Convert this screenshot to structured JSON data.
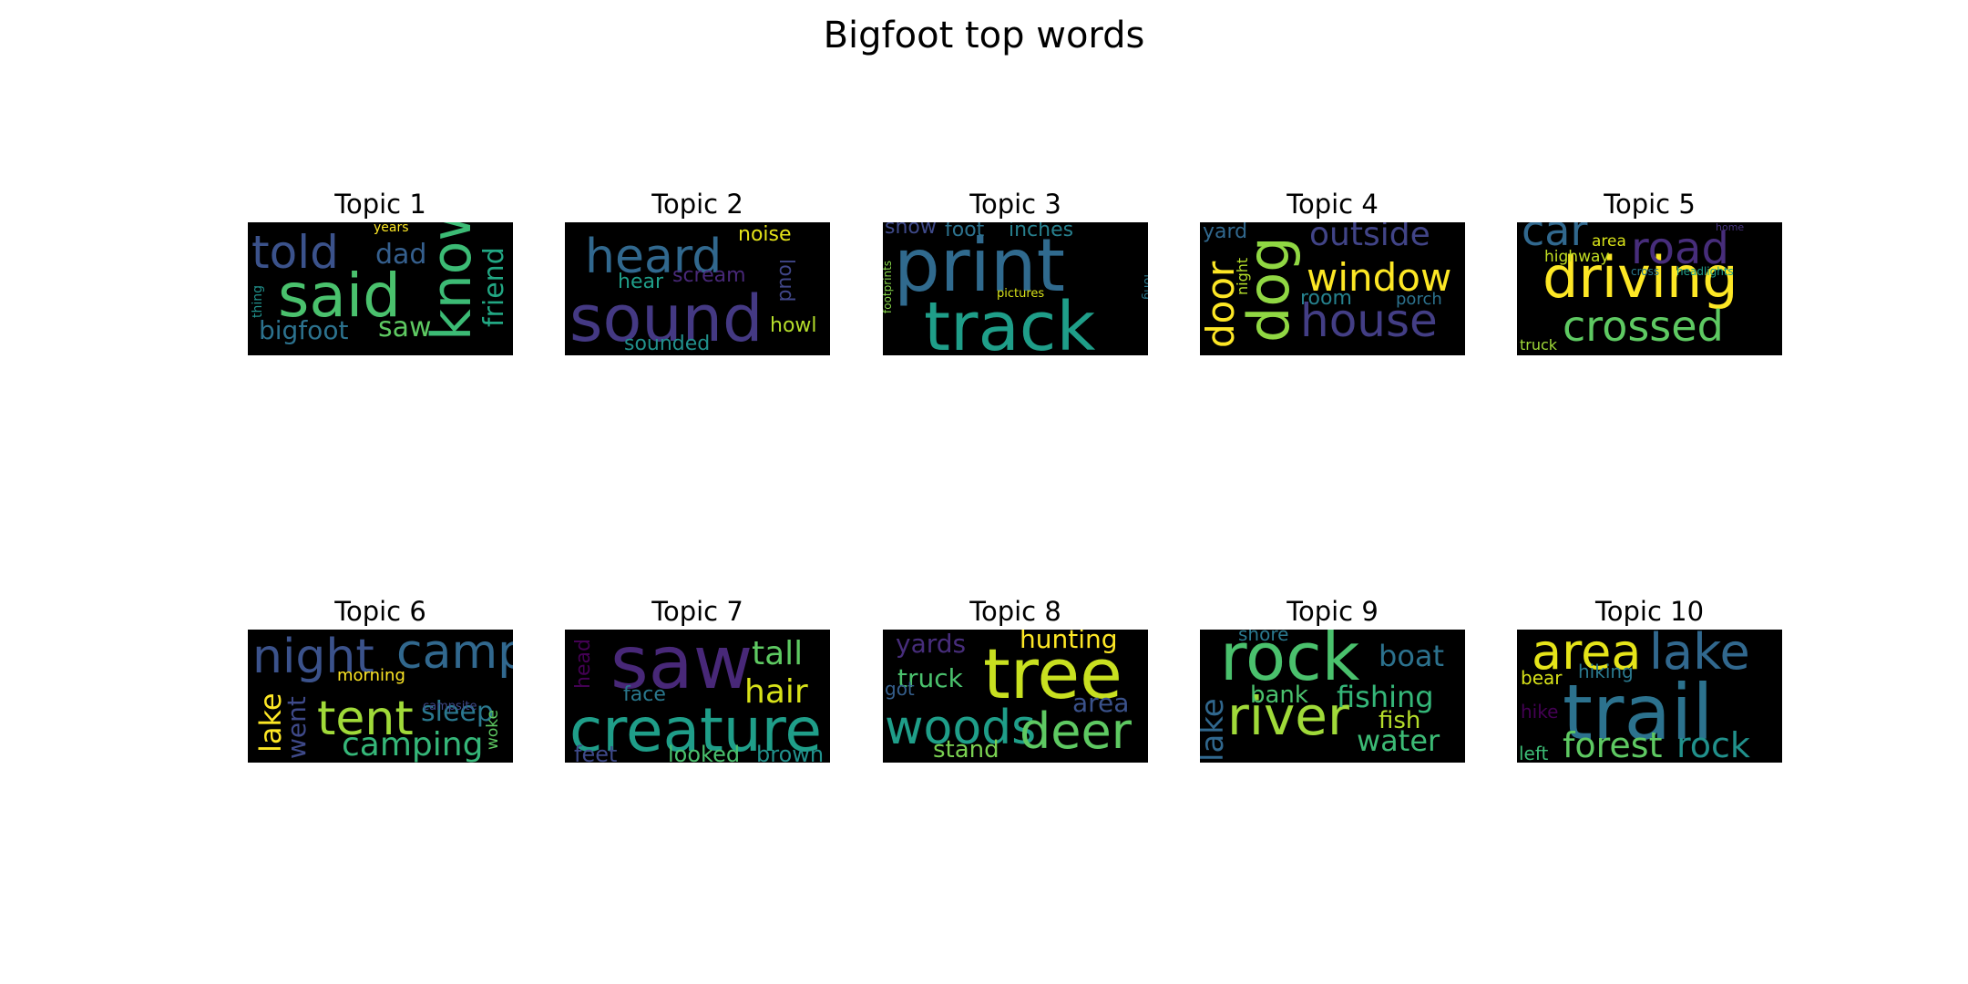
{
  "figure": {
    "title": "Bigfoot top words"
  },
  "chart_data": {
    "type": "wordcloud",
    "title": "Bigfoot top words",
    "colormap": "viridis",
    "background": "#000000",
    "topics": [
      {
        "title": "Topic 1",
        "words": [
          {
            "text": "said",
            "weight": 0.95,
            "color": "#4ac16d"
          },
          {
            "text": "told",
            "weight": 0.6,
            "color": "#3b528b"
          },
          {
            "text": "know",
            "weight": 0.7,
            "color": "#3cbb75"
          },
          {
            "text": "dad",
            "weight": 0.4,
            "color": "#355f8d"
          },
          {
            "text": "bigfoot",
            "weight": 0.35,
            "color": "#2c728e"
          },
          {
            "text": "saw",
            "weight": 0.36,
            "color": "#5ec962"
          },
          {
            "text": "friend",
            "weight": 0.38,
            "color": "#22a884"
          },
          {
            "text": "thing",
            "weight": 0.15,
            "color": "#21918c"
          },
          {
            "text": "years",
            "weight": 0.12,
            "color": "#fde725"
          }
        ]
      },
      {
        "title": "Topic 2",
        "words": [
          {
            "text": "sound",
            "weight": 1.0,
            "color": "#443983"
          },
          {
            "text": "heard",
            "weight": 0.7,
            "color": "#31688e"
          },
          {
            "text": "noise",
            "weight": 0.3,
            "color": "#e5e419"
          },
          {
            "text": "scream",
            "weight": 0.3,
            "color": "#482878"
          },
          {
            "text": "hear",
            "weight": 0.28,
            "color": "#1f9e89"
          },
          {
            "text": "loud",
            "weight": 0.3,
            "color": "#404688"
          },
          {
            "text": "howl",
            "weight": 0.3,
            "color": "#b5de2b"
          },
          {
            "text": "sounded",
            "weight": 0.28,
            "color": "#21918c"
          }
        ]
      },
      {
        "title": "Topic 3",
        "words": [
          {
            "text": "print",
            "weight": 1.0,
            "color": "#306a8e"
          },
          {
            "text": "track",
            "weight": 1.0,
            "color": "#1f9e89"
          },
          {
            "text": "snow",
            "weight": 0.26,
            "color": "#3e4989"
          },
          {
            "text": "foot",
            "weight": 0.26,
            "color": "#2c728e"
          },
          {
            "text": "inches",
            "weight": 0.26,
            "color": "#27808e"
          },
          {
            "text": "footprints",
            "weight": 0.13,
            "color": "#86d549"
          },
          {
            "text": "pictures",
            "weight": 0.14,
            "color": "#d8e219"
          },
          {
            "text": "long",
            "weight": 0.14,
            "color": "#2a788e"
          }
        ]
      },
      {
        "title": "Topic 4",
        "words": [
          {
            "text": "dog",
            "weight": 0.9,
            "color": "#90d743"
          },
          {
            "text": "window",
            "weight": 0.65,
            "color": "#fde725"
          },
          {
            "text": "house",
            "weight": 0.7,
            "color": "#433e85"
          },
          {
            "text": "outside",
            "weight": 0.48,
            "color": "#414487"
          },
          {
            "text": "door",
            "weight": 0.55,
            "color": "#fde725"
          },
          {
            "text": "yard",
            "weight": 0.3,
            "color": "#31688e"
          },
          {
            "text": "night",
            "weight": 0.2,
            "color": "#b5de2b"
          },
          {
            "text": "room",
            "weight": 0.32,
            "color": "#26828e"
          },
          {
            "text": "porch",
            "weight": 0.26,
            "color": "#2c728e"
          }
        ]
      },
      {
        "title": "Topic 5",
        "words": [
          {
            "text": "driving",
            "weight": 0.9,
            "color": "#fde725"
          },
          {
            "text": "crossed",
            "weight": 0.7,
            "color": "#5ec962"
          },
          {
            "text": "road",
            "weight": 0.7,
            "color": "#472d7b"
          },
          {
            "text": "car",
            "weight": 0.6,
            "color": "#31688e"
          },
          {
            "text": "area",
            "weight": 0.2,
            "color": "#d8e219"
          },
          {
            "text": "highway",
            "weight": 0.2,
            "color": "#c2df23"
          },
          {
            "text": "truck",
            "weight": 0.2,
            "color": "#a0da39"
          },
          {
            "text": "cross",
            "weight": 0.12,
            "color": "#2a788e"
          },
          {
            "text": "headlights",
            "weight": 0.12,
            "color": "#1f9e89"
          },
          {
            "text": "home",
            "weight": 0.1,
            "color": "#46337e"
          }
        ]
      },
      {
        "title": "Topic 6",
        "words": [
          {
            "text": "night",
            "weight": 0.78,
            "color": "#3b528b"
          },
          {
            "text": "camp",
            "weight": 0.78,
            "color": "#31688e"
          },
          {
            "text": "tent",
            "weight": 0.78,
            "color": "#a0da39"
          },
          {
            "text": "camping",
            "weight": 0.5,
            "color": "#35b779"
          },
          {
            "text": "sleep",
            "weight": 0.42,
            "color": "#2a788e"
          },
          {
            "text": "lake",
            "weight": 0.45,
            "color": "#fde725"
          },
          {
            "text": "went",
            "weight": 0.38,
            "color": "#3e4989"
          },
          {
            "text": "morning",
            "weight": 0.25,
            "color": "#fde725"
          },
          {
            "text": "campsite",
            "weight": 0.15,
            "color": "#3e4989"
          },
          {
            "text": "woke",
            "weight": 0.22,
            "color": "#5ec962"
          }
        ]
      },
      {
        "title": "Topic 7",
        "words": [
          {
            "text": "saw",
            "weight": 1.0,
            "color": "#482878"
          },
          {
            "text": "creature",
            "weight": 0.9,
            "color": "#1f9e89"
          },
          {
            "text": "tall",
            "weight": 0.5,
            "color": "#5ec962"
          },
          {
            "text": "hair",
            "weight": 0.5,
            "color": "#d8e219"
          },
          {
            "text": "face",
            "weight": 0.3,
            "color": "#2a788e"
          },
          {
            "text": "head",
            "weight": 0.3,
            "color": "#440154"
          },
          {
            "text": "feet",
            "weight": 0.3,
            "color": "#3e4989"
          },
          {
            "text": "looked",
            "weight": 0.35,
            "color": "#4ac16d"
          },
          {
            "text": "brown",
            "weight": 0.35,
            "color": "#21918c"
          }
        ]
      },
      {
        "title": "Topic 8",
        "words": [
          {
            "text": "tree",
            "weight": 1.0,
            "color": "#c8e020"
          },
          {
            "text": "woods",
            "weight": 0.72,
            "color": "#1f9e89"
          },
          {
            "text": "deer",
            "weight": 0.75,
            "color": "#5ec962"
          },
          {
            "text": "hunting",
            "weight": 0.38,
            "color": "#fde725"
          },
          {
            "text": "yards",
            "weight": 0.35,
            "color": "#472d7b"
          },
          {
            "text": "truck",
            "weight": 0.38,
            "color": "#4ac16d"
          },
          {
            "text": "area",
            "weight": 0.35,
            "color": "#3b528b"
          },
          {
            "text": "got",
            "weight": 0.25,
            "color": "#355f8d"
          },
          {
            "text": "stand",
            "weight": 0.34,
            "color": "#7ad151"
          }
        ]
      },
      {
        "title": "Topic 9",
        "words": [
          {
            "text": "rock",
            "weight": 1.0,
            "color": "#4ac16d"
          },
          {
            "text": "river",
            "weight": 0.78,
            "color": "#a0da39"
          },
          {
            "text": "boat",
            "weight": 0.45,
            "color": "#2c728e"
          },
          {
            "text": "fishing",
            "weight": 0.45,
            "color": "#35b779"
          },
          {
            "text": "water",
            "weight": 0.45,
            "color": "#3cbb75"
          },
          {
            "text": "fish",
            "weight": 0.35,
            "color": "#b5de2b"
          },
          {
            "text": "bank",
            "weight": 0.36,
            "color": "#4ac16d"
          },
          {
            "text": "lake",
            "weight": 0.42,
            "color": "#31688e"
          },
          {
            "text": "shore",
            "weight": 0.28,
            "color": "#2a788e"
          }
        ]
      },
      {
        "title": "Topic 10",
        "words": [
          {
            "text": "trail",
            "weight": 1.0,
            "color": "#2c728e"
          },
          {
            "text": "area",
            "weight": 0.72,
            "color": "#e5e419"
          },
          {
            "text": "lake",
            "weight": 0.72,
            "color": "#31688e"
          },
          {
            "text": "forest",
            "weight": 0.52,
            "color": "#5ec962"
          },
          {
            "text": "rock",
            "weight": 0.52,
            "color": "#21918c"
          },
          {
            "text": "bear",
            "weight": 0.28,
            "color": "#d8e219"
          },
          {
            "text": "hiking",
            "weight": 0.28,
            "color": "#2a788e"
          },
          {
            "text": "hike",
            "weight": 0.28,
            "color": "#440154"
          },
          {
            "text": "left",
            "weight": 0.26,
            "color": "#3cbb75"
          }
        ]
      }
    ]
  }
}
